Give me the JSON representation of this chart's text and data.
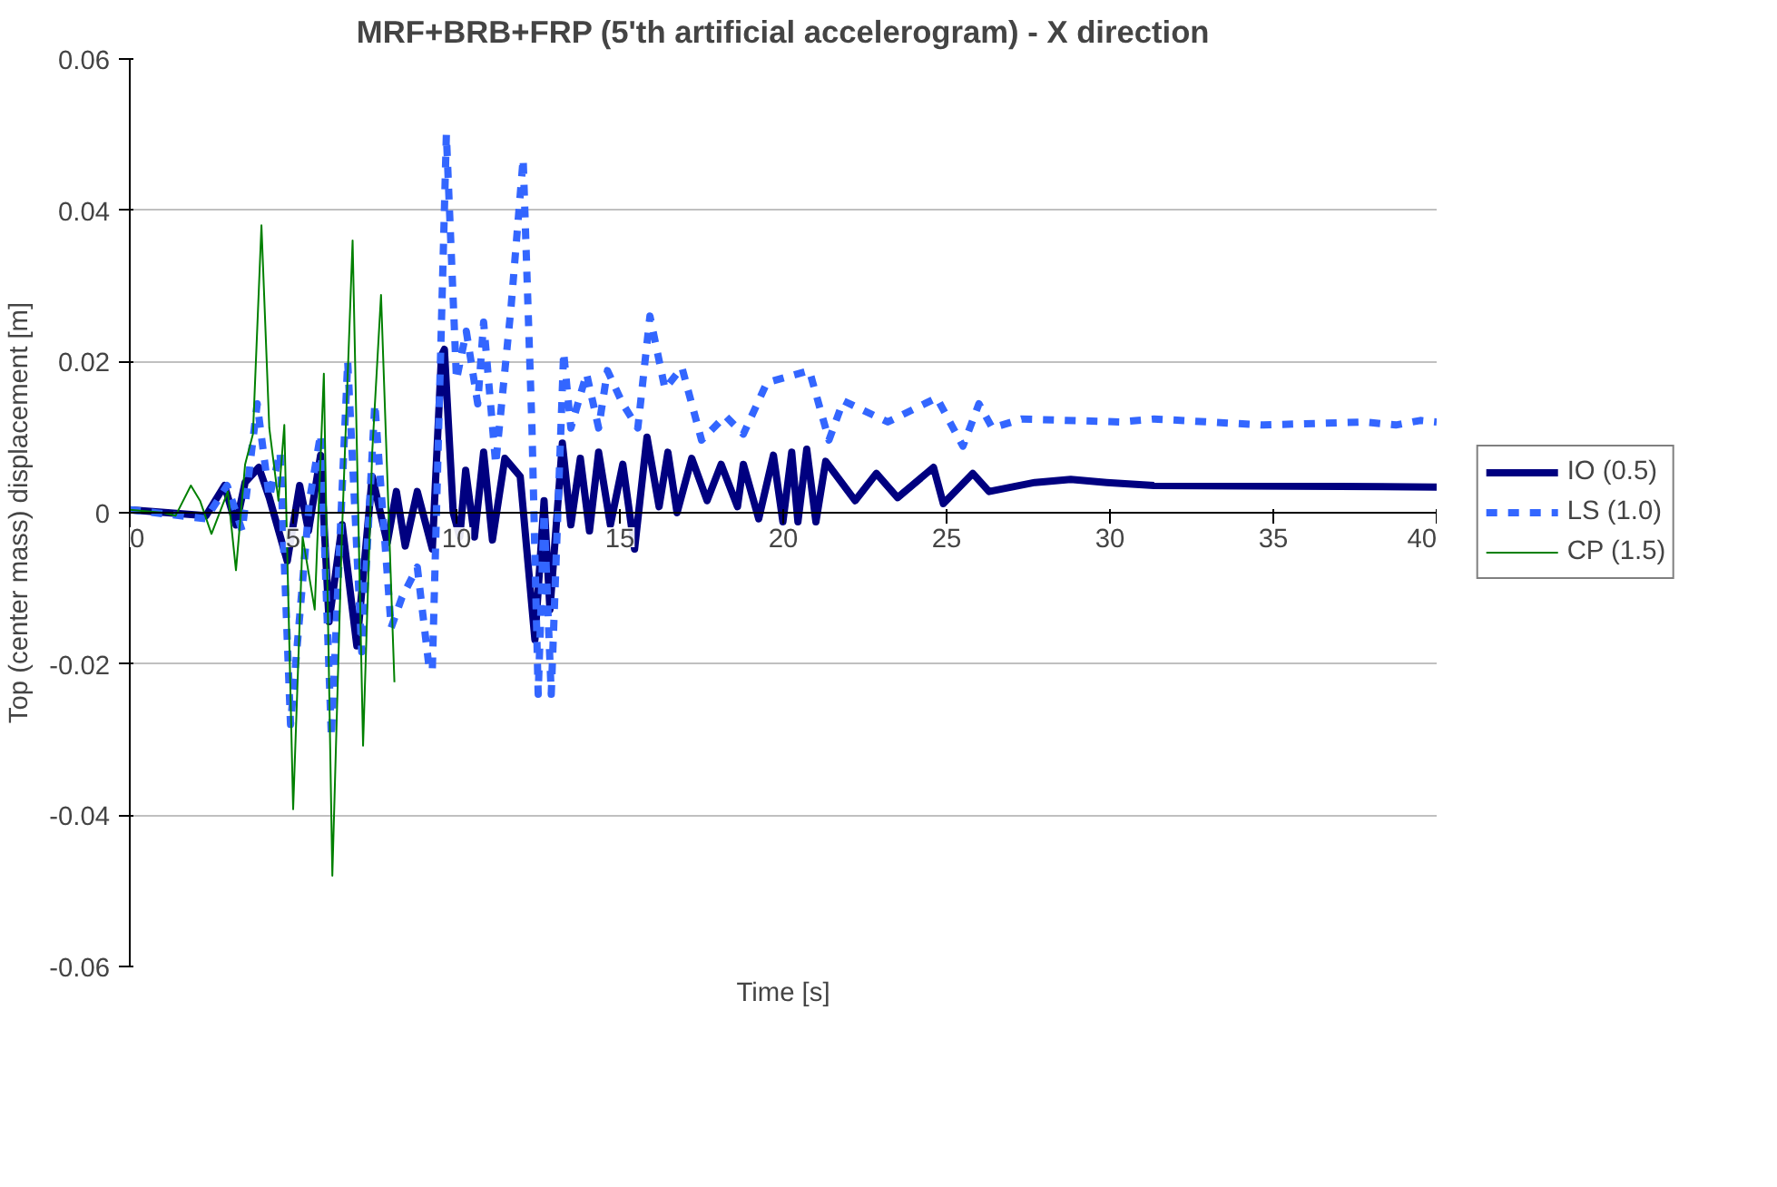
{
  "chart_data": {
    "type": "line",
    "title": "MRF+BRB+FRP (5'th artificial accelerogram) - X direction",
    "xlabel": "Time [s]",
    "ylabel": "Top (center mass) displacement [m]",
    "xlim": [
      0,
      40
    ],
    "xticks": [
      0,
      5,
      10,
      15,
      20,
      25,
      30,
      35,
      40
    ],
    "ylim": [
      -0.06,
      0.06
    ],
    "yticks": [
      -0.06,
      -0.04,
      -0.02,
      0,
      0.02,
      0.04,
      0.06
    ],
    "grid": "y",
    "legend": "right",
    "marker": "none",
    "series": [
      {
        "name": "IO (0.5)",
        "color": "#000080",
        "line_style": "solid",
        "x": [
          0,
          2.33,
          2.9,
          3.25,
          3.53,
          3.95,
          4.27,
          4.82,
          5.2,
          5.47,
          5.84,
          6.1,
          6.5,
          6.95,
          7.42,
          7.88,
          8.16,
          8.43,
          8.8,
          9.26,
          9.54,
          9.63,
          9.9,
          10.1,
          10.28,
          10.55,
          10.83,
          11.1,
          11.48,
          11.95,
          12.4,
          12.68,
          12.86,
          13.24,
          13.5,
          13.79,
          14.07,
          14.35,
          14.71,
          15.09,
          15.45,
          15.83,
          16.2,
          16.47,
          16.75,
          17.2,
          17.67,
          18.1,
          18.6,
          18.78,
          19.25,
          19.7,
          19.99,
          20.26,
          20.45,
          20.72,
          21.0,
          21.3,
          22.2,
          22.85,
          23.5,
          24.6,
          24.9,
          25.8,
          26.3,
          27.7,
          28.8,
          29.9,
          31.35,
          40
        ],
        "values": [
          0.0004,
          -0.0004,
          0.0036,
          -0.0016,
          0.004,
          0.006,
          0.002,
          -0.0064,
          0.0036,
          -0.0024,
          0.0076,
          -0.0144,
          -0.0016,
          -0.0176,
          0.0048,
          -0.004,
          0.0028,
          -0.0044,
          0.0028,
          -0.0048,
          0.0208,
          0.0216,
          0,
          -0.0032,
          0.0056,
          -0.0032,
          0.008,
          -0.0036,
          0.0072,
          0.0048,
          -0.0168,
          0.0016,
          -0.0128,
          0.0092,
          -0.0016,
          0.0072,
          -0.0024,
          0.008,
          -0.0016,
          0.0064,
          -0.0048,
          0.01,
          0.0008,
          0.008,
          0,
          0.0072,
          0.0016,
          0.0064,
          0.0008,
          0.0064,
          -0.0008,
          0.0076,
          -0.0012,
          0.008,
          -0.0012,
          0.0084,
          -0.0012,
          0.0068,
          0.0016,
          0.0052,
          0.002,
          0.006,
          0.0012,
          0.0052,
          0.0028,
          0.004,
          0.0044,
          0.004,
          0.0036,
          0.0034
        ]
      },
      {
        "name": "LS (1.0)",
        "color": "#3366ff",
        "line_style": "dashed",
        "x": [
          0,
          2.33,
          2.98,
          3.44,
          3.9,
          4.27,
          4.6,
          4.92,
          5.5,
          5.84,
          6.17,
          6.67,
          7.1,
          7.5,
          8.0,
          8.33,
          8.8,
          9.17,
          9.26,
          9.69,
          10.0,
          10.3,
          10.65,
          10.83,
          11.2,
          11.67,
          12.04,
          12.31,
          12.5,
          12.68,
          12.9,
          13.28,
          13.5,
          13.98,
          14.35,
          14.62,
          15.09,
          15.55,
          15.92,
          16.38,
          16.9,
          17.5,
          18.23,
          18.78,
          19.5,
          20.8,
          21.4,
          21.84,
          23.2,
          24.7,
          25.5,
          25.99,
          26.4,
          27.3,
          30.3,
          31.35,
          34.7,
          37.8,
          38.75,
          39.5,
          40
        ],
        "values": [
          0.0004,
          -0.0008,
          0.0036,
          -0.0024,
          0.0144,
          0.002,
          0.008,
          -0.028,
          0.0016,
          0.0104,
          -0.0296,
          0.02,
          -0.0184,
          0.0144,
          -0.0152,
          -0.0112,
          -0.0072,
          -0.0208,
          -0.0208,
          0.05,
          0.0176,
          0.024,
          0.0144,
          0.0252,
          0.0064,
          0.0272,
          0.0468,
          0.0112,
          -0.024,
          0,
          -0.024,
          0.0212,
          0.0112,
          0.0184,
          0.0112,
          0.0188,
          0.0144,
          0.0112,
          0.026,
          0.0164,
          0.0192,
          0.0096,
          0.0128,
          0.0104,
          0.0172,
          0.0188,
          0.0096,
          0.0148,
          0.012,
          0.0152,
          0.0088,
          0.0144,
          0.0112,
          0.0124,
          0.012,
          0.0124,
          0.0116,
          0.012,
          0.0116,
          0.0122,
          0.012
        ]
      },
      {
        "name": "CP (1.5)",
        "color": "#008000",
        "line_style": "solid",
        "x": [
          0,
          1.03,
          1.4,
          1.87,
          2.15,
          2.5,
          3.0,
          3.25,
          3.53,
          3.77,
          4.03,
          4.27,
          4.55,
          4.73,
          5.0,
          5.29,
          5.66,
          5.94,
          6.2,
          6.49,
          6.82,
          7.14,
          7.42,
          7.69,
          8.1
        ],
        "values": [
          0.0004,
          0,
          -0.0004,
          0.0036,
          0.0016,
          -0.0028,
          0.0028,
          -0.0076,
          0.0064,
          0.0104,
          0.038,
          0.0112,
          0.0016,
          0.0116,
          -0.0392,
          -0.0032,
          -0.0128,
          0.0184,
          -0.048,
          -0.0032,
          0.036,
          -0.0308,
          0.008,
          0.0288,
          -0.0224
        ]
      }
    ]
  }
}
